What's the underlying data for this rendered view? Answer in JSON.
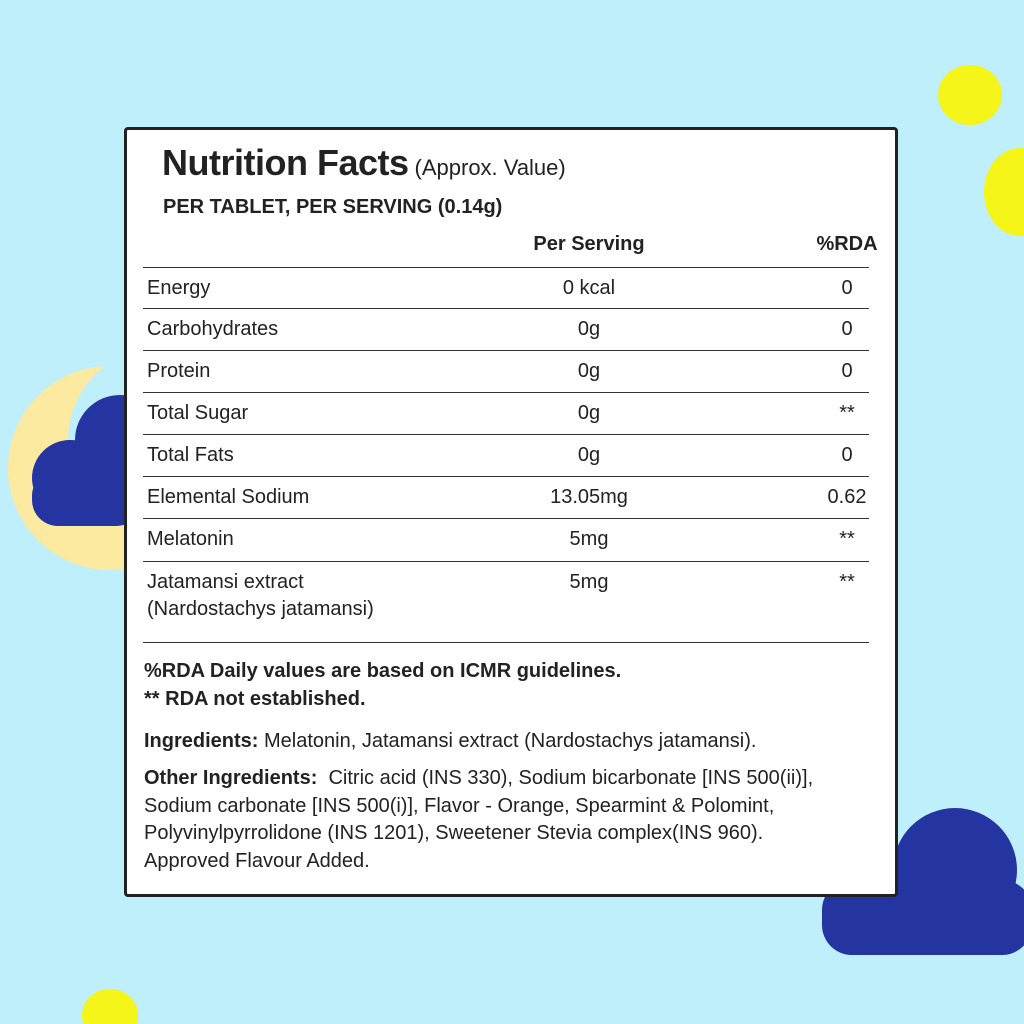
{
  "header": {
    "title": "Nutrition Facts",
    "subtitle": "(Approx. Value)",
    "serving": "PER TABLET, PER SERVING (0.14g)"
  },
  "table": {
    "columns": [
      "Per Serving",
      "%RDA"
    ],
    "rows": [
      {
        "name": "Energy",
        "per": "0 kcal",
        "rda": "0"
      },
      {
        "name": "Carbohydrates",
        "per": "0g",
        "rda": "0"
      },
      {
        "name": "Protein",
        "per": "0g",
        "rda": "0"
      },
      {
        "name": "Total Sugar",
        "per": "0g",
        "rda": "**"
      },
      {
        "name": "Total Fats",
        "per": "0g",
        "rda": "0"
      },
      {
        "name": "Elemental Sodium",
        "per": "13.05mg",
        "rda": "0.62"
      },
      {
        "name": "Melatonin",
        "per": "5mg",
        "rda": "**"
      },
      {
        "name": "Jatamansi extract",
        "note": "(Nardostachys jatamansi)",
        "per": "5mg",
        "rda": "**"
      }
    ]
  },
  "notes": [
    "%RDA Daily values are based on ICMR guidelines.",
    "** RDA not established."
  ],
  "ingredients": {
    "label": "Ingredients:",
    "text": "Melatonin, Jatamansi extract (Nardostachys jatamansi)."
  },
  "other_ingredients": {
    "label": "Other Ingredients:",
    "lines": [
      "Citric acid (INS 330), Sodium bicarbonate [INS 500(ii)],",
      "Sodium carbonate [INS 500(i)], Flavor - Orange, Spearmint & Polomint,",
      "Polyvinylpyrrolidone (INS 1201), Sweetener Stevia complex(INS 960).",
      "Approved Flavour Added."
    ]
  }
}
